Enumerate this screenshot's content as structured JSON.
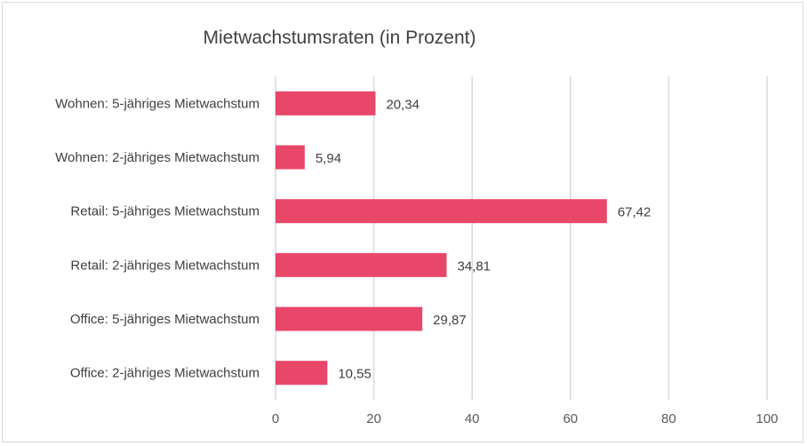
{
  "chart_data": {
    "type": "bar",
    "orientation": "horizontal",
    "title": "Mietwachstumsraten (in Prozent)",
    "categories": [
      "Wohnen: 5-jähriges Mietwachstum",
      "Wohnen: 2-jähriges Mietwachstum",
      "Retail: 5-jähriges Mietwachstum",
      "Retail: 2-jähriges Mietwachstum",
      "Office: 5-jähriges Mietwachstum",
      "Office: 2-jähriges Mietwachstum"
    ],
    "values": [
      20.34,
      5.94,
      67.42,
      34.81,
      29.87,
      10.55
    ],
    "value_labels": [
      "20,34",
      "5,94",
      "67,42",
      "34,81",
      "29,87",
      "10,55"
    ],
    "xlim": [
      0,
      100
    ],
    "x_ticks": [
      0,
      20,
      40,
      60,
      80,
      100
    ],
    "grid": "vertical",
    "legend": "none",
    "bar_color": "#e8476a"
  }
}
